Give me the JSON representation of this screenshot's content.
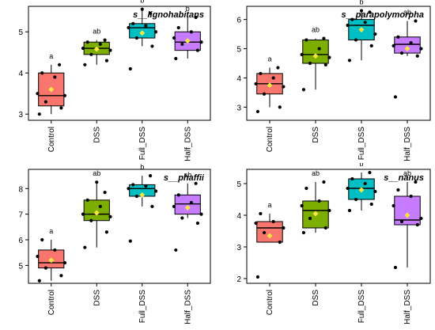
{
  "categories": [
    "Control",
    "DSS",
    "Full_DSS",
    "Half_DSS"
  ],
  "colors": {
    "Control": "#f8766d",
    "DSS": "#7cae00",
    "Full_DSS": "#00bfc4",
    "Half_DSS": "#c77cff",
    "mean_marker": "#f5e642",
    "point": "#000000"
  },
  "chart_data": [
    {
      "type": "box",
      "title": "s__lignohabitans",
      "categories": [
        "Control",
        "DSS",
        "Full_DSS",
        "Half_DSS"
      ],
      "ylim": [
        2.85,
        5.62
      ],
      "yticks": [
        3,
        4,
        5
      ],
      "boxes": [
        {
          "q1": 3.2,
          "median": 3.45,
          "q3": 4.0,
          "whisker_low": 3.0,
          "whisker_high": 4.2,
          "mean": 3.6,
          "letter": "a",
          "points": [
            3.0,
            3.15,
            3.3,
            3.45,
            3.5,
            3.9,
            4.0,
            4.2
          ]
        },
        {
          "q1": 4.45,
          "median": 4.6,
          "q3": 4.75,
          "whisker_low": 4.2,
          "whisker_high": 4.8,
          "mean": 4.58,
          "letter": "ab",
          "points": [
            4.2,
            4.3,
            4.45,
            4.55,
            4.6,
            4.7,
            4.75,
            4.8
          ]
        },
        {
          "q1": 4.85,
          "median": 5.1,
          "q3": 5.2,
          "whisker_low": 4.65,
          "whisker_high": 5.55,
          "mean": 4.97,
          "letter": "b",
          "points": [
            4.1,
            4.65,
            4.85,
            5.0,
            5.1,
            5.15,
            5.2,
            5.45,
            5.55
          ]
        },
        {
          "q1": 4.55,
          "median": 4.75,
          "q3": 5.0,
          "whisker_low": 4.35,
          "whisker_high": 5.35,
          "mean": 4.78,
          "letter": "b",
          "points": [
            4.35,
            4.55,
            4.7,
            4.75,
            4.85,
            5.0,
            5.1,
            5.35
          ]
        }
      ]
    },
    {
      "type": "box",
      "title": "s__parapolymorpha",
      "categories": [
        "Control",
        "DSS",
        "Full_DSS",
        "Half_DSS"
      ],
      "ylim": [
        2.55,
        6.45
      ],
      "yticks": [
        3,
        4,
        5,
        6
      ],
      "boxes": [
        {
          "q1": 3.45,
          "median": 3.8,
          "q3": 4.15,
          "whisker_low": 3.0,
          "whisker_high": 4.35,
          "mean": 3.75,
          "letter": "a",
          "points": [
            2.85,
            3.0,
            3.45,
            3.7,
            3.8,
            4.0,
            4.15,
            4.35
          ]
        },
        {
          "q1": 4.5,
          "median": 4.8,
          "q3": 5.3,
          "whisker_low": 3.6,
          "whisker_high": 5.35,
          "mean": 4.75,
          "letter": "ab",
          "points": [
            3.6,
            4.45,
            4.5,
            4.7,
            4.8,
            5.0,
            5.3,
            5.35
          ]
        },
        {
          "q1": 5.3,
          "median": 5.8,
          "q3": 6.0,
          "whisker_low": 4.6,
          "whisker_high": 6.3,
          "mean": 5.65,
          "letter": "b",
          "points": [
            4.6,
            5.1,
            5.3,
            5.5,
            5.8,
            5.9,
            6.0,
            6.25,
            6.3
          ]
        },
        {
          "q1": 4.85,
          "median": 5.15,
          "q3": 5.4,
          "whisker_low": 4.75,
          "whisker_high": 5.95,
          "mean": 5.0,
          "letter": "ab",
          "points": [
            3.35,
            4.75,
            4.85,
            5.0,
            5.1,
            5.2,
            5.4,
            5.95
          ]
        }
      ]
    },
    {
      "type": "box",
      "title": "s__phaffii",
      "categories": [
        "Control",
        "DSS",
        "Full_DSS",
        "Half_DSS"
      ],
      "ylim": [
        4.3,
        8.75
      ],
      "yticks": [
        5,
        6,
        7,
        8
      ],
      "boxes": [
        {
          "q1": 4.9,
          "median": 5.1,
          "q3": 5.6,
          "whisker_low": 4.4,
          "whisker_high": 6.0,
          "mean": 5.2,
          "letter": "a",
          "points": [
            4.4,
            4.6,
            4.9,
            5.1,
            5.35,
            5.6,
            6.0
          ]
        },
        {
          "q1": 6.75,
          "median": 7.0,
          "q3": 7.55,
          "whisker_low": 5.7,
          "whisker_high": 8.25,
          "mean": 7.05,
          "letter": "ab",
          "points": [
            5.7,
            6.3,
            6.75,
            6.9,
            7.0,
            7.3,
            7.55,
            7.85,
            8.25
          ]
        },
        {
          "q1": 7.7,
          "median": 8.0,
          "q3": 8.15,
          "whisker_low": 7.3,
          "whisker_high": 8.5,
          "mean": 7.75,
          "letter": "b",
          "points": [
            5.95,
            7.3,
            7.7,
            7.9,
            8.0,
            8.1,
            8.15,
            8.5
          ]
        },
        {
          "q1": 7.0,
          "median": 7.4,
          "q3": 7.75,
          "whisker_low": 6.85,
          "whisker_high": 8.2,
          "mean": 7.25,
          "letter": "ab",
          "points": [
            5.6,
            6.65,
            6.85,
            7.0,
            7.3,
            7.45,
            7.75,
            8.2
          ]
        }
      ]
    },
    {
      "type": "box",
      "title": "s__nanus",
      "categories": [
        "Control",
        "DSS",
        "Full_DSS",
        "Half_DSS"
      ],
      "ylim": [
        1.85,
        5.45
      ],
      "yticks": [
        2,
        3,
        4,
        5
      ],
      "boxes": [
        {
          "q1": 3.15,
          "median": 3.6,
          "q3": 3.8,
          "whisker_low": 3.15,
          "whisker_high": 4.05,
          "mean": 3.35,
          "letter": "a",
          "points": [
            2.05,
            3.15,
            3.45,
            3.6,
            3.75,
            3.8,
            4.05
          ]
        },
        {
          "q1": 3.6,
          "median": 4.15,
          "q3": 4.45,
          "whisker_low": 3.45,
          "whisker_high": 5.05,
          "mean": 4.05,
          "letter": "ab",
          "points": [
            3.45,
            3.6,
            3.9,
            4.15,
            4.3,
            4.45,
            4.85,
            5.05
          ]
        },
        {
          "q1": 4.5,
          "median": 4.85,
          "q3": 5.15,
          "whisker_low": 4.15,
          "whisker_high": 5.35,
          "mean": 4.8,
          "letter": "b",
          "points": [
            4.15,
            4.35,
            4.5,
            4.75,
            4.85,
            5.0,
            5.15,
            5.35
          ]
        },
        {
          "q1": 3.7,
          "median": 3.85,
          "q3": 4.6,
          "whisker_low": 2.35,
          "whisker_high": 5.05,
          "mean": 4.0,
          "letter": "ab",
          "points": [
            2.35,
            3.7,
            3.8,
            3.9,
            4.3,
            4.6,
            4.8,
            5.05
          ]
        }
      ]
    }
  ]
}
